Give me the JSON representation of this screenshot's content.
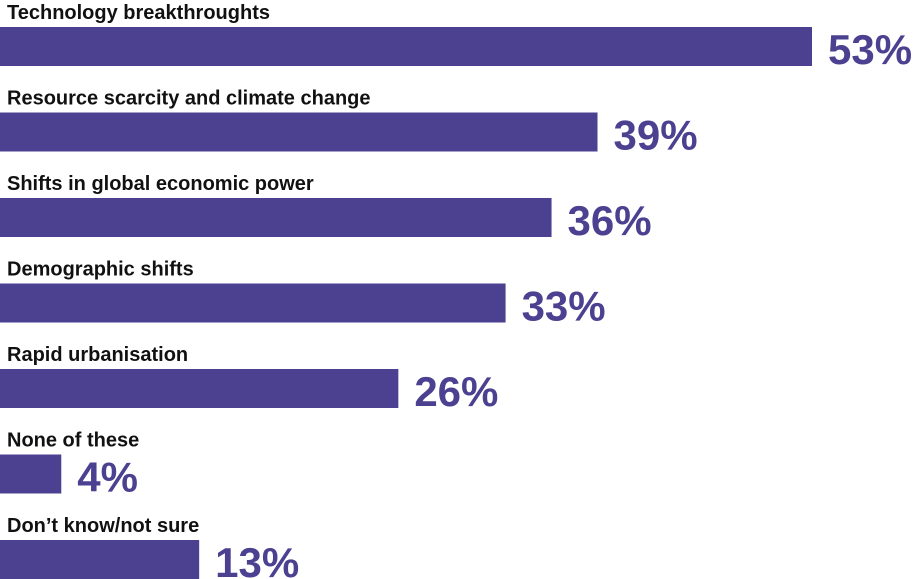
{
  "chart_data": {
    "type": "bar",
    "orientation": "horizontal",
    "categories": [
      "Technology breakthroughts",
      "Resource scarcity and climate change",
      "Shifts in global economic power",
      "Demographic shifts",
      "Rapid urbanisation",
      "None of these",
      "Don’t know/not sure"
    ],
    "values": [
      53,
      39,
      36,
      33,
      26,
      4,
      13
    ],
    "value_labels": [
      "53%",
      "39%",
      "36%",
      "33%",
      "26%",
      "4%",
      "13%"
    ],
    "unit": "%",
    "xlim": [
      0,
      53
    ],
    "grid": false,
    "legend": "none",
    "colors": {
      "bar": "#4b4190",
      "value_text": "#4b4190",
      "label_text": "#111111"
    }
  }
}
